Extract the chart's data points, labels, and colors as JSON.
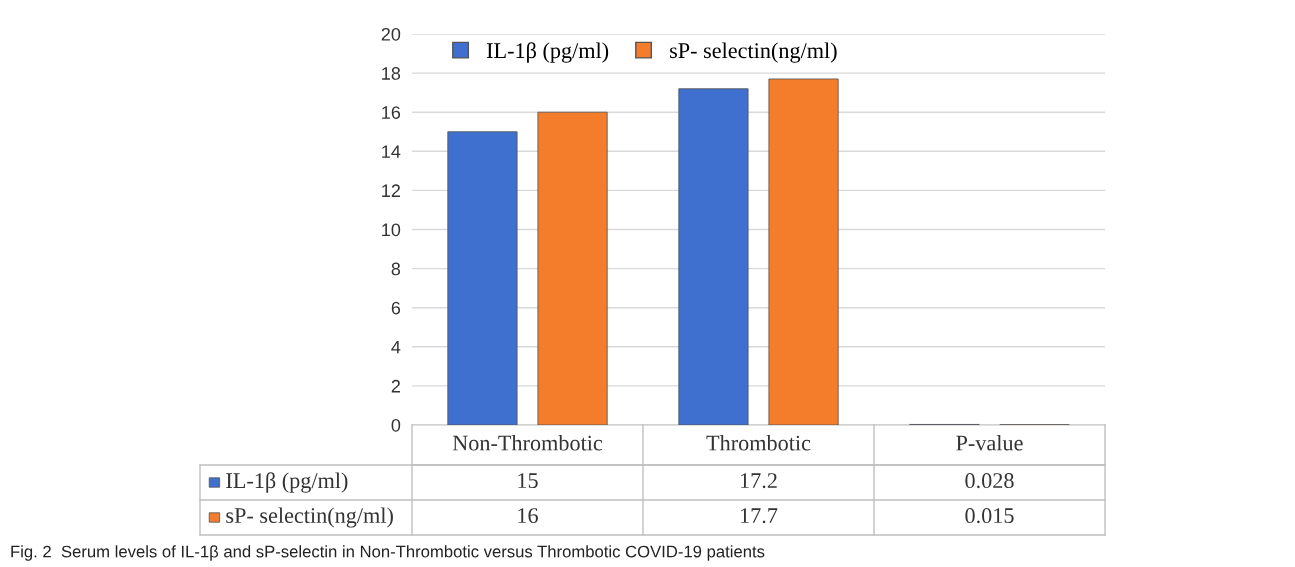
{
  "chart_data": {
    "type": "bar",
    "categories": [
      "Non-Thrombotic",
      "Thrombotic",
      "P-value"
    ],
    "series": [
      {
        "name": "IL-1β (pg/ml)",
        "color": "#3f6fcf",
        "values": [
          15,
          17.2,
          0.028
        ]
      },
      {
        "name": "sP- selectin(ng/ml)",
        "color": "#f47d2c",
        "values": [
          16,
          17.7,
          0.015
        ]
      }
    ],
    "ylim": [
      0,
      20
    ],
    "yticks": [
      0,
      2,
      4,
      6,
      8,
      10,
      12,
      14,
      16,
      18,
      20
    ],
    "grid": "y",
    "legend": "top left",
    "data_labels": true,
    "annotations": [
      "Fig. 2  Serum levels of IL-1β and sP-selectin in Non-Thrombotic versus Thrombotic COVID-19 patients"
    ]
  }
}
